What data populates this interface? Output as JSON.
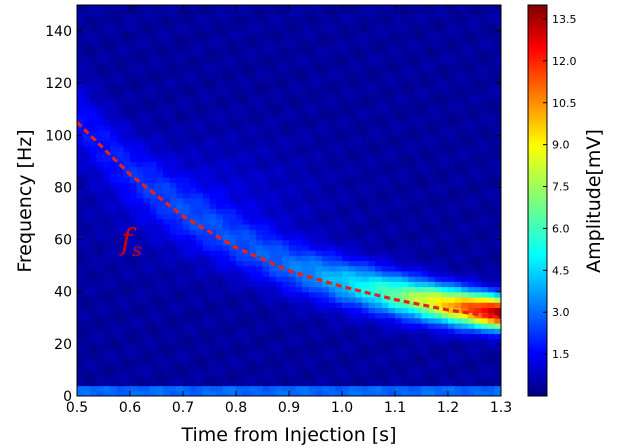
{
  "chart_data": {
    "type": "heatmap",
    "title": "",
    "xlabel": "Time from Injection [s]",
    "ylabel": "Frequency [Hz]",
    "xlim": [
      0.5,
      1.3
    ],
    "ylim": [
      0,
      150
    ],
    "xticks": [
      "0.5",
      "0.6",
      "0.7",
      "0.8",
      "0.9",
      "1.0",
      "1.1",
      "1.2",
      "1.3"
    ],
    "yticks": [
      "0",
      "20",
      "40",
      "60",
      "80",
      "100",
      "120",
      "140"
    ],
    "colorbar": {
      "label": "Amplitude[mV]",
      "range": [
        0,
        14
      ],
      "ticks": [
        "1.5",
        "3.0",
        "4.5",
        "6.0",
        "7.5",
        "9.0",
        "10.5",
        "12.0",
        "13.5"
      ],
      "colormap": "jet"
    },
    "background_level_mV": 0.4,
    "features": [
      {
        "kind": "horizontal_band",
        "frequency_hz": 2,
        "amplitude_mV": 5.5
      },
      {
        "kind": "ridge_along_fs",
        "amplitude_start_mV": 1.5,
        "amplitude_end_mV": 13.5,
        "width_hz": 9
      }
    ],
    "fs_curve": {
      "label": "f_s",
      "label_text": "f",
      "label_sub": "s",
      "style": "dashed",
      "color": "#e8201c",
      "points": [
        {
          "x": 0.5,
          "y": 105
        },
        {
          "x": 0.6,
          "y": 85
        },
        {
          "x": 0.7,
          "y": 69
        },
        {
          "x": 0.8,
          "y": 57
        },
        {
          "x": 0.9,
          "y": 48
        },
        {
          "x": 1.0,
          "y": 42
        },
        {
          "x": 1.1,
          "y": 37
        },
        {
          "x": 1.2,
          "y": 33
        },
        {
          "x": 1.3,
          "y": 30
        }
      ]
    }
  }
}
